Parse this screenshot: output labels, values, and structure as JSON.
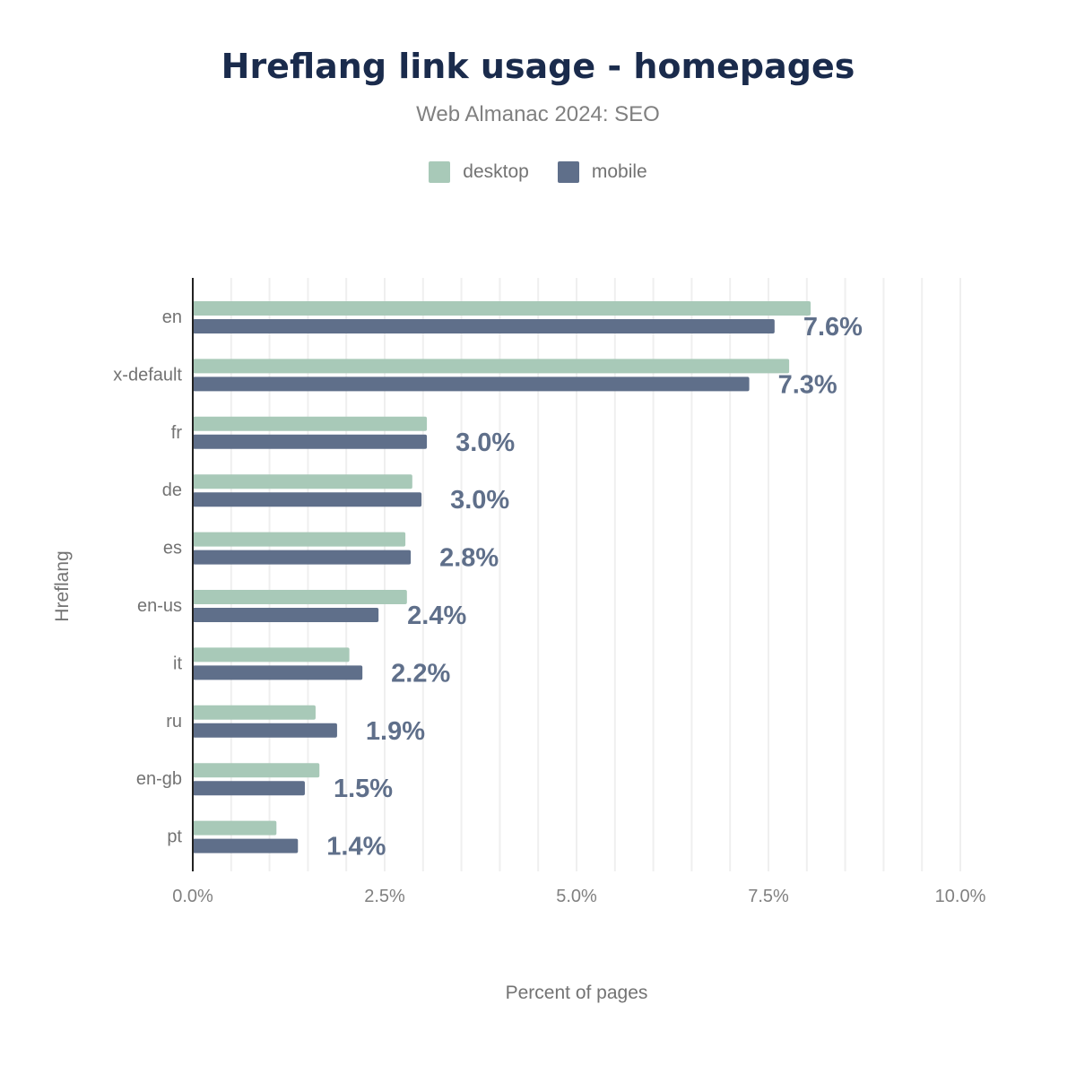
{
  "chart_data": {
    "type": "bar",
    "orientation": "horizontal",
    "title": "Hreflang link usage - homepages",
    "subtitle": "Web Almanac 2024: SEO",
    "xlabel": "Percent of pages",
    "ylabel": "Hreflang",
    "xlim": [
      0,
      10
    ],
    "xticks": [
      "0.0%",
      "2.5%",
      "5.0%",
      "7.5%",
      "10.0%"
    ],
    "grid": true,
    "legend_position": "top",
    "categories": [
      "en",
      "x-default",
      "fr",
      "de",
      "es",
      "en-us",
      "it",
      "ru",
      "en-gb",
      "pt"
    ],
    "series": [
      {
        "name": "desktop",
        "color": "#a8c9b8",
        "values": [
          8.05,
          7.77,
          3.05,
          2.86,
          2.77,
          2.79,
          2.04,
          1.6,
          1.65,
          1.09
        ]
      },
      {
        "name": "mobile",
        "color": "#5f6f8a",
        "values": [
          7.58,
          7.25,
          3.05,
          2.98,
          2.84,
          2.42,
          2.21,
          1.88,
          1.46,
          1.37
        ]
      }
    ],
    "data_labels": [
      "7.6%",
      "7.3%",
      "3.0%",
      "3.0%",
      "2.8%",
      "2.4%",
      "2.2%",
      "1.9%",
      "1.5%",
      "1.4%"
    ]
  }
}
